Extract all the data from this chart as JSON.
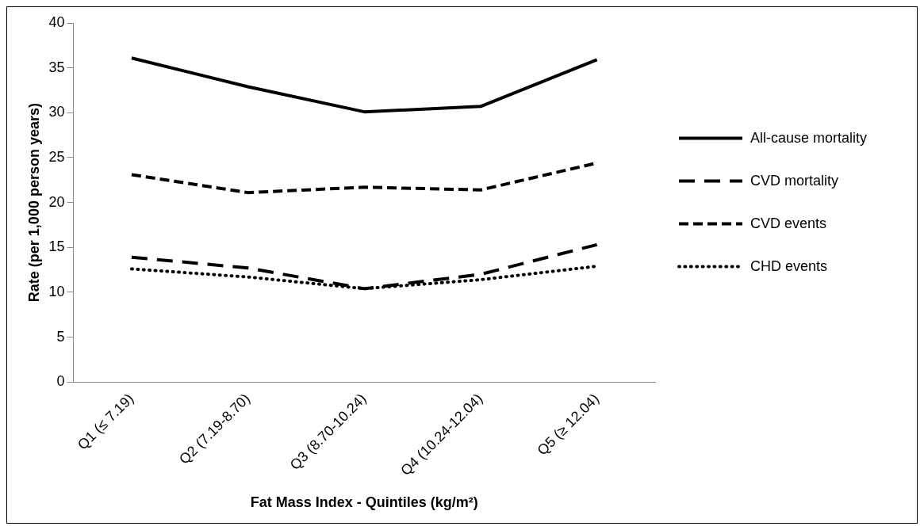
{
  "chart_data": {
    "type": "line",
    "xlabel": "Fat Mass Index - Quintiles (kg/m²)",
    "ylabel": "Rate (per 1,000 person years)",
    "categories": [
      "Q1 (≤ 7.19)",
      "Q2 (7.19-8.70)",
      "Q3 (8.70-10.24)",
      "Q4 (10.24-12.04)",
      "Q5 (≥ 12.04)"
    ],
    "series": [
      {
        "name": "All-cause mortality",
        "color": "#000000",
        "line_style": "solid",
        "values": [
          36.1,
          32.9,
          30.1,
          30.7,
          35.9
        ]
      },
      {
        "name": "CVD mortality",
        "color": "#000000",
        "line_style": "dashed",
        "values": [
          13.9,
          12.7,
          10.4,
          12.0,
          15.3
        ]
      },
      {
        "name": "CVD events",
        "color": "#000000",
        "line_style": "dashed",
        "values": [
          23.1,
          21.1,
          21.7,
          21.4,
          24.4
        ]
      },
      {
        "name": "CHD events",
        "color": "#000000",
        "line_style": "dotted",
        "values": [
          12.6,
          11.7,
          10.4,
          11.4,
          12.9
        ]
      }
    ],
    "ylim": [
      0,
      40
    ],
    "yticks": [
      0,
      5,
      10,
      15,
      20,
      25,
      30,
      35,
      40
    ],
    "grid": false,
    "legend": "right",
    "marker": "none"
  }
}
